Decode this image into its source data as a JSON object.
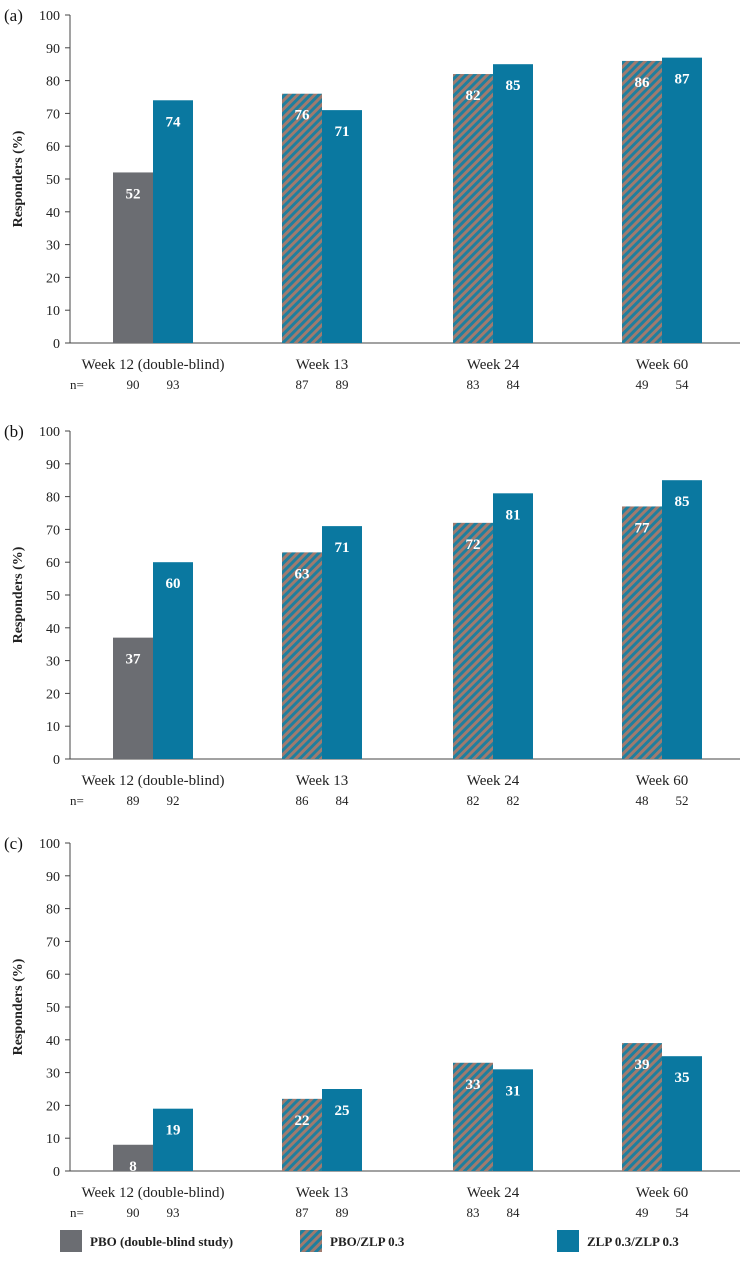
{
  "colors": {
    "pbo": "#6b6d72",
    "pbo_zlp": "#1f7f9e",
    "pbo_zlp_stripe": "#a07a6e",
    "zlp": "#0a78a0"
  },
  "legend": [
    {
      "label": "PBO (double-blind study)",
      "style": "pbo"
    },
    {
      "label": "PBO/ZLP 0.3",
      "style": "pbo_zlp"
    },
    {
      "label": "ZLP 0.3/ZLP 0.3",
      "style": "zlp"
    }
  ],
  "chart_data": [
    {
      "type": "bar",
      "panel_label": "(a)",
      "ylabel": "Responders (%)",
      "ylim": [
        0,
        100
      ],
      "yticks": [
        0,
        10,
        20,
        30,
        40,
        50,
        60,
        70,
        80,
        90,
        100
      ],
      "categories": [
        "Week 12 (double-blind)",
        "Week 13",
        "Week 24",
        "Week 60"
      ],
      "n_label": "n=",
      "groups": [
        {
          "bars": [
            {
              "style": "pbo",
              "value": 52,
              "label": "52",
              "n": "90"
            },
            {
              "style": "zlp",
              "value": 74,
              "label": "74",
              "n": "93"
            }
          ]
        },
        {
          "bars": [
            {
              "style": "pbo_zlp",
              "value": 76,
              "label": "76",
              "n": "87"
            },
            {
              "style": "zlp",
              "value": 71,
              "label": "71",
              "n": "89"
            }
          ]
        },
        {
          "bars": [
            {
              "style": "pbo_zlp",
              "value": 82,
              "label": "82",
              "n": "83"
            },
            {
              "style": "zlp",
              "value": 85,
              "label": "85",
              "n": "84"
            }
          ]
        },
        {
          "bars": [
            {
              "style": "pbo_zlp",
              "value": 86,
              "label": "86",
              "n": "49"
            },
            {
              "style": "zlp",
              "value": 87,
              "label": "87",
              "n": "54"
            }
          ]
        }
      ]
    },
    {
      "type": "bar",
      "panel_label": "(b)",
      "ylabel": "Responders (%)",
      "ylim": [
        0,
        100
      ],
      "yticks": [
        0,
        10,
        20,
        30,
        40,
        50,
        60,
        70,
        80,
        90,
        100
      ],
      "categories": [
        "Week 12 (double-blind)",
        "Week 13",
        "Week 24",
        "Week 60"
      ],
      "n_label": "n=",
      "groups": [
        {
          "bars": [
            {
              "style": "pbo",
              "value": 37,
              "label": "37",
              "n": "89"
            },
            {
              "style": "zlp",
              "value": 60,
              "label": "60",
              "n": "92"
            }
          ]
        },
        {
          "bars": [
            {
              "style": "pbo_zlp",
              "value": 63,
              "label": "63",
              "n": "86"
            },
            {
              "style": "zlp",
              "value": 71,
              "label": "71",
              "n": "84"
            }
          ]
        },
        {
          "bars": [
            {
              "style": "pbo_zlp",
              "value": 72,
              "label": "72",
              "n": "82"
            },
            {
              "style": "zlp",
              "value": 81,
              "label": "81",
              "n": "82"
            }
          ]
        },
        {
          "bars": [
            {
              "style": "pbo_zlp",
              "value": 77,
              "label": "77",
              "n": "48"
            },
            {
              "style": "zlp",
              "value": 85,
              "label": "85",
              "n": "52"
            }
          ]
        }
      ]
    },
    {
      "type": "bar",
      "panel_label": "(c)",
      "ylabel": "Responders (%)",
      "ylim": [
        0,
        100
      ],
      "yticks": [
        0,
        10,
        20,
        30,
        40,
        50,
        60,
        70,
        80,
        90,
        100
      ],
      "categories": [
        "Week 12 (double-blind)",
        "Week 13",
        "Week 24",
        "Week 60"
      ],
      "n_label": "n=",
      "groups": [
        {
          "bars": [
            {
              "style": "pbo",
              "value": 8,
              "label": "8",
              "n": "90"
            },
            {
              "style": "zlp",
              "value": 19,
              "label": "19",
              "n": "93"
            }
          ]
        },
        {
          "bars": [
            {
              "style": "pbo_zlp",
              "value": 22,
              "label": "22",
              "n": "87"
            },
            {
              "style": "zlp",
              "value": 25,
              "label": "25",
              "n": "89"
            }
          ]
        },
        {
          "bars": [
            {
              "style": "pbo_zlp",
              "value": 33,
              "label": "33",
              "n": "83"
            },
            {
              "style": "zlp",
              "value": 31,
              "label": "31",
              "n": "84"
            }
          ]
        },
        {
          "bars": [
            {
              "style": "pbo_zlp",
              "value": 39,
              "label": "39",
              "n": "49"
            },
            {
              "style": "zlp",
              "value": 35,
              "label": "35",
              "n": "54"
            }
          ]
        }
      ]
    }
  ]
}
